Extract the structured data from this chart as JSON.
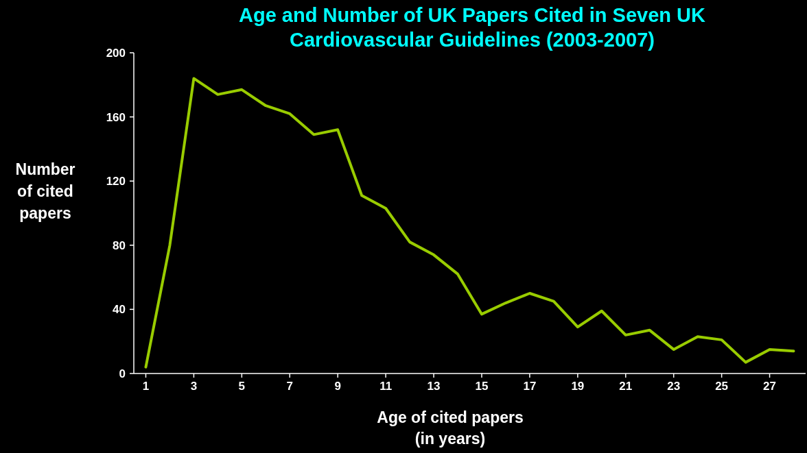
{
  "chart_data": {
    "type": "line",
    "title": "Age and Number of UK Papers Cited in Seven UK Cardiovascular Guidelines (2003-2007)",
    "xlabel": "Age of cited papers\n(in years)",
    "ylabel": "Number\nof cited\npapers",
    "x": [
      1,
      2,
      3,
      4,
      5,
      6,
      7,
      8,
      9,
      10,
      11,
      12,
      13,
      14,
      15,
      16,
      17,
      18,
      19,
      20,
      21,
      22,
      23,
      24,
      25,
      26,
      27,
      28
    ],
    "series": [
      {
        "color": "#99cc00",
        "values": [
          4,
          80,
          184,
          174,
          177,
          167,
          162,
          149,
          152,
          111,
          103,
          82,
          74,
          62,
          37,
          44,
          50,
          45,
          29,
          39,
          24,
          27,
          15,
          23,
          21,
          7,
          15,
          14
        ]
      }
    ],
    "xlim": [
      0.5,
      28.5
    ],
    "xticks": [
      1,
      3,
      5,
      7,
      9,
      11,
      13,
      15,
      17,
      19,
      21,
      23,
      25,
      27
    ],
    "ylim": [
      0,
      200
    ],
    "yticks": [
      0,
      40,
      80,
      120,
      160,
      200
    ],
    "grid": false,
    "marker": "none",
    "line_style": "solid"
  }
}
